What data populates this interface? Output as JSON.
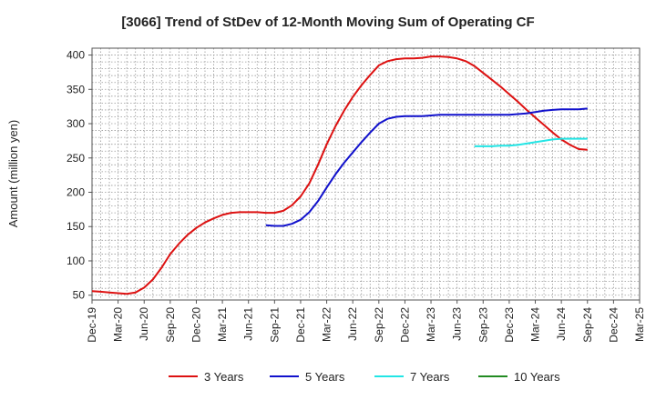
{
  "chart_data": {
    "type": "line",
    "title": "[3066]  Trend of StDev of 12-Month Moving Sum of Operating CF",
    "ylabel": "Amount (million yen)",
    "xlabel": "",
    "ylim": [
      43,
      410
    ],
    "yticks": [
      50,
      100,
      150,
      200,
      250,
      300,
      350,
      400
    ],
    "x_range": [
      "2019-12",
      "2025-03"
    ],
    "x_ticks": [
      {
        "date": "2019-12",
        "label": "Dec-19"
      },
      {
        "date": "2020-03",
        "label": "Mar-20"
      },
      {
        "date": "2020-06",
        "label": "Jun-20"
      },
      {
        "date": "2020-09",
        "label": "Sep-20"
      },
      {
        "date": "2020-12",
        "label": "Dec-20"
      },
      {
        "date": "2021-03",
        "label": "Mar-21"
      },
      {
        "date": "2021-06",
        "label": "Jun-21"
      },
      {
        "date": "2021-09",
        "label": "Sep-21"
      },
      {
        "date": "2021-12",
        "label": "Dec-21"
      },
      {
        "date": "2022-03",
        "label": "Mar-22"
      },
      {
        "date": "2022-06",
        "label": "Jun-22"
      },
      {
        "date": "2022-09",
        "label": "Sep-22"
      },
      {
        "date": "2022-12",
        "label": "Dec-22"
      },
      {
        "date": "2023-03",
        "label": "Mar-23"
      },
      {
        "date": "2023-06",
        "label": "Jun-23"
      },
      {
        "date": "2023-09",
        "label": "Sep-23"
      },
      {
        "date": "2023-12",
        "label": "Dec-23"
      },
      {
        "date": "2024-03",
        "label": "Mar-24"
      },
      {
        "date": "2024-06",
        "label": "Jun-24"
      },
      {
        "date": "2024-09",
        "label": "Sep-24"
      },
      {
        "date": "2024-12",
        "label": "Dec-24"
      },
      {
        "date": "2025-03",
        "label": "Mar-25"
      }
    ],
    "grid": true,
    "legend_position": "bottom",
    "series": [
      {
        "name": "3 Years",
        "color": "#dd1111",
        "points": [
          [
            "2019-12",
            56
          ],
          [
            "2020-01",
            55
          ],
          [
            "2020-02",
            54
          ],
          [
            "2020-03",
            53
          ],
          [
            "2020-04",
            52
          ],
          [
            "2020-05",
            54
          ],
          [
            "2020-06",
            61
          ],
          [
            "2020-07",
            73
          ],
          [
            "2020-08",
            90
          ],
          [
            "2020-09",
            110
          ],
          [
            "2020-10",
            125
          ],
          [
            "2020-11",
            138
          ],
          [
            "2020-12",
            148
          ],
          [
            "2021-01",
            156
          ],
          [
            "2021-02",
            162
          ],
          [
            "2021-03",
            167
          ],
          [
            "2021-04",
            170
          ],
          [
            "2021-05",
            171
          ],
          [
            "2021-06",
            171
          ],
          [
            "2021-07",
            171
          ],
          [
            "2021-08",
            170
          ],
          [
            "2021-09",
            170
          ],
          [
            "2021-10",
            173
          ],
          [
            "2021-11",
            181
          ],
          [
            "2021-12",
            194
          ],
          [
            "2022-01",
            213
          ],
          [
            "2022-02",
            240
          ],
          [
            "2022-03",
            270
          ],
          [
            "2022-04",
            296
          ],
          [
            "2022-05",
            319
          ],
          [
            "2022-06",
            339
          ],
          [
            "2022-07",
            356
          ],
          [
            "2022-08",
            371
          ],
          [
            "2022-09",
            385
          ],
          [
            "2022-10",
            391
          ],
          [
            "2022-11",
            394
          ],
          [
            "2022-12",
            395
          ],
          [
            "2023-01",
            395
          ],
          [
            "2023-02",
            396
          ],
          [
            "2023-03",
            398
          ],
          [
            "2023-04",
            398
          ],
          [
            "2023-05",
            397
          ],
          [
            "2023-06",
            395
          ],
          [
            "2023-07",
            391
          ],
          [
            "2023-08",
            384
          ],
          [
            "2023-09",
            374
          ],
          [
            "2023-10",
            364
          ],
          [
            "2023-11",
            354
          ],
          [
            "2023-12",
            343
          ],
          [
            "2024-01",
            332
          ],
          [
            "2024-02",
            320
          ],
          [
            "2024-03",
            309
          ],
          [
            "2024-04",
            298
          ],
          [
            "2024-05",
            287
          ],
          [
            "2024-06",
            277
          ],
          [
            "2024-07",
            269
          ],
          [
            "2024-08",
            263
          ],
          [
            "2024-09",
            262
          ]
        ]
      },
      {
        "name": "5 Years",
        "color": "#1111cc",
        "points": [
          [
            "2021-08",
            152
          ],
          [
            "2021-09",
            151
          ],
          [
            "2021-10",
            151
          ],
          [
            "2021-11",
            154
          ],
          [
            "2021-12",
            160
          ],
          [
            "2022-01",
            171
          ],
          [
            "2022-02",
            187
          ],
          [
            "2022-03",
            207
          ],
          [
            "2022-04",
            226
          ],
          [
            "2022-05",
            243
          ],
          [
            "2022-06",
            258
          ],
          [
            "2022-07",
            273
          ],
          [
            "2022-08",
            287
          ],
          [
            "2022-09",
            300
          ],
          [
            "2022-10",
            307
          ],
          [
            "2022-11",
            310
          ],
          [
            "2022-12",
            311
          ],
          [
            "2023-01",
            311
          ],
          [
            "2023-02",
            311
          ],
          [
            "2023-03",
            312
          ],
          [
            "2023-04",
            313
          ],
          [
            "2023-05",
            313
          ],
          [
            "2023-06",
            313
          ],
          [
            "2023-07",
            313
          ],
          [
            "2023-08",
            313
          ],
          [
            "2023-09",
            313
          ],
          [
            "2023-10",
            313
          ],
          [
            "2023-11",
            313
          ],
          [
            "2023-12",
            313
          ],
          [
            "2024-01",
            314
          ],
          [
            "2024-02",
            315
          ],
          [
            "2024-03",
            317
          ],
          [
            "2024-04",
            319
          ],
          [
            "2024-05",
            320
          ],
          [
            "2024-06",
            321
          ],
          [
            "2024-07",
            321
          ],
          [
            "2024-08",
            321
          ],
          [
            "2024-09",
            322
          ]
        ]
      },
      {
        "name": "7 Years",
        "color": "#22e5e5",
        "points": [
          [
            "2023-08",
            267
          ],
          [
            "2023-09",
            267
          ],
          [
            "2023-10",
            267
          ],
          [
            "2023-11",
            268
          ],
          [
            "2023-12",
            268
          ],
          [
            "2024-01",
            269
          ],
          [
            "2024-02",
            271
          ],
          [
            "2024-03",
            273
          ],
          [
            "2024-04",
            275
          ],
          [
            "2024-05",
            277
          ],
          [
            "2024-06",
            278
          ],
          [
            "2024-07",
            278
          ],
          [
            "2024-08",
            278
          ],
          [
            "2024-09",
            278
          ]
        ]
      },
      {
        "name": "10 Years",
        "color": "#228b22",
        "points": []
      }
    ]
  }
}
